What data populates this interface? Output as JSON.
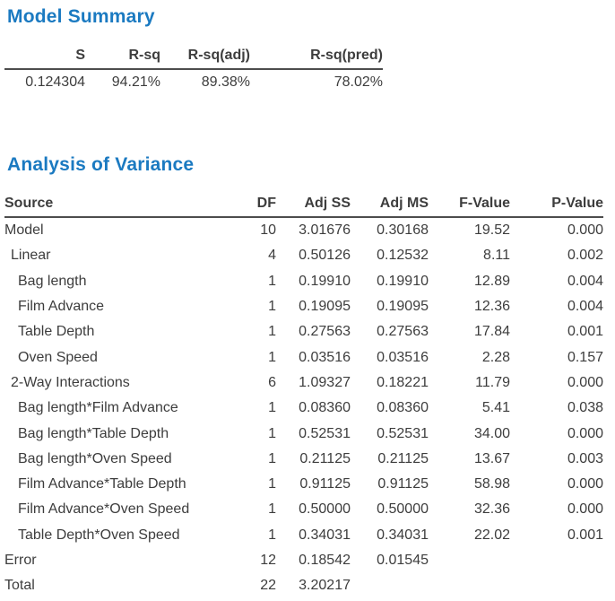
{
  "colors": {
    "title_blue": "#1b7ac1",
    "text": "#3d3d3d",
    "header_rule": "#4d4d4d",
    "background": "#ffffff"
  },
  "model_summary": {
    "title": "Model Summary",
    "columns": [
      "S",
      "R-sq",
      "R-sq(adj)",
      "R-sq(pred)"
    ],
    "values": [
      "0.124304",
      "94.21%",
      "89.38%",
      "78.02%"
    ]
  },
  "anova": {
    "title": "Analysis of Variance",
    "columns": [
      "Source",
      "DF",
      "Adj SS",
      "Adj MS",
      "F-Value",
      "P-Value"
    ],
    "rows": [
      {
        "source": "Model",
        "indent": 0,
        "df": "10",
        "adj_ss": "3.01676",
        "adj_ms": "0.30168",
        "f_value": "19.52",
        "p_value": "0.000"
      },
      {
        "source": "Linear",
        "indent": 1,
        "df": "4",
        "adj_ss": "0.50126",
        "adj_ms": "0.12532",
        "f_value": "8.11",
        "p_value": "0.002"
      },
      {
        "source": "Bag length",
        "indent": 2,
        "df": "1",
        "adj_ss": "0.19910",
        "adj_ms": "0.19910",
        "f_value": "12.89",
        "p_value": "0.004"
      },
      {
        "source": "Film Advance",
        "indent": 2,
        "df": "1",
        "adj_ss": "0.19095",
        "adj_ms": "0.19095",
        "f_value": "12.36",
        "p_value": "0.004"
      },
      {
        "source": "Table Depth",
        "indent": 2,
        "df": "1",
        "adj_ss": "0.27563",
        "adj_ms": "0.27563",
        "f_value": "17.84",
        "p_value": "0.001"
      },
      {
        "source": "Oven Speed",
        "indent": 2,
        "df": "1",
        "adj_ss": "0.03516",
        "adj_ms": "0.03516",
        "f_value": "2.28",
        "p_value": "0.157"
      },
      {
        "source": "2-Way Interactions",
        "indent": 1,
        "df": "6",
        "adj_ss": "1.09327",
        "adj_ms": "0.18221",
        "f_value": "11.79",
        "p_value": "0.000"
      },
      {
        "source": "Bag length*Film Advance",
        "indent": 2,
        "df": "1",
        "adj_ss": "0.08360",
        "adj_ms": "0.08360",
        "f_value": "5.41",
        "p_value": "0.038"
      },
      {
        "source": "Bag length*Table Depth",
        "indent": 2,
        "df": "1",
        "adj_ss": "0.52531",
        "adj_ms": "0.52531",
        "f_value": "34.00",
        "p_value": "0.000"
      },
      {
        "source": "Bag length*Oven Speed",
        "indent": 2,
        "df": "1",
        "adj_ss": "0.21125",
        "adj_ms": "0.21125",
        "f_value": "13.67",
        "p_value": "0.003"
      },
      {
        "source": "Film Advance*Table Depth",
        "indent": 2,
        "df": "1",
        "adj_ss": "0.91125",
        "adj_ms": "0.91125",
        "f_value": "58.98",
        "p_value": "0.000"
      },
      {
        "source": "Film Advance*Oven Speed",
        "indent": 2,
        "df": "1",
        "adj_ss": "0.50000",
        "adj_ms": "0.50000",
        "f_value": "32.36",
        "p_value": "0.000"
      },
      {
        "source": "Table Depth*Oven Speed",
        "indent": 2,
        "df": "1",
        "adj_ss": "0.34031",
        "adj_ms": "0.34031",
        "f_value": "22.02",
        "p_value": "0.001"
      },
      {
        "source": "Error",
        "indent": 0,
        "df": "12",
        "adj_ss": "0.18542",
        "adj_ms": "0.01545",
        "f_value": "",
        "p_value": ""
      },
      {
        "source": "Total",
        "indent": 0,
        "df": "22",
        "adj_ss": "3.20217",
        "adj_ms": "",
        "f_value": "",
        "p_value": ""
      }
    ]
  }
}
